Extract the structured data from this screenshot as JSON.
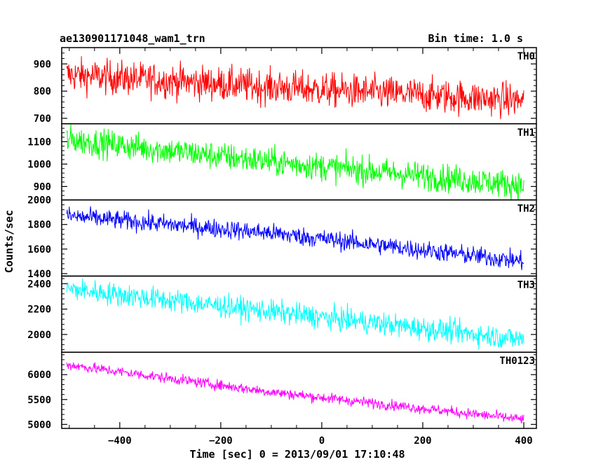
{
  "chart_data": {
    "type": "line",
    "title": "ae130901171048_wam1_trn",
    "bin_time_label": "Bin time: 1.0 s",
    "xlabel": "Time [sec] 0 = 2013/09/01 17:10:48",
    "ylabel": "Counts/sec",
    "xlim": [
      -515,
      425
    ],
    "x_ticks": [
      -400,
      -200,
      0,
      200,
      400
    ],
    "x_tick_labels": [
      "−400",
      "−200",
      "0",
      "200",
      "400"
    ],
    "x_range_data": [
      -505,
      400
    ],
    "grid": false,
    "panels": [
      {
        "name": "TH0",
        "color": "#ff0000",
        "ylim": [
          680,
          960
        ],
        "y_ticks": [
          700,
          800,
          900
        ],
        "y_tick_labels": [
          "700",
          "800",
          "900"
        ],
        "trend": [
          [
            -505,
            860
          ],
          [
            -100,
            815
          ],
          [
            400,
            765
          ]
        ],
        "noise": 45
      },
      {
        "name": "TH1",
        "color": "#00ff00",
        "ylim": [
          840,
          1180
        ],
        "y_ticks": [
          900,
          1000,
          1100
        ],
        "y_tick_labels": [
          "900",
          "1000",
          "1100"
        ],
        "trend": [
          [
            -505,
            1110
          ],
          [
            -100,
            1010
          ],
          [
            400,
            905
          ]
        ],
        "noise": 45
      },
      {
        "name": "TH2",
        "color": "#0000ff",
        "ylim": [
          1380,
          2000
        ],
        "y_ticks": [
          1400,
          1600,
          1800,
          2000
        ],
        "y_tick_labels": [
          "1400",
          "1600",
          "1800",
          "2000"
        ],
        "trend": [
          [
            -505,
            1870
          ],
          [
            -100,
            1730
          ],
          [
            400,
            1500
          ]
        ],
        "noise": 55
      },
      {
        "name": "TH3",
        "color": "#00ffff",
        "ylim": [
          1860,
          2460
        ],
        "y_ticks": [
          2000,
          2200,
          2400
        ],
        "y_tick_labels": [
          "2000",
          "2200",
          "2400"
        ],
        "trend": [
          [
            -505,
            2360
          ],
          [
            -100,
            2180
          ],
          [
            400,
            1960
          ]
        ],
        "noise": 65
      },
      {
        "name": "TH0123",
        "color": "#ff00ff",
        "ylim": [
          4920,
          6450
        ],
        "y_ticks": [
          5000,
          5500,
          6000
        ],
        "y_tick_labels": [
          "5000",
          "5500",
          "6000"
        ],
        "trend": [
          [
            -505,
            6200
          ],
          [
            -100,
            5650
          ],
          [
            400,
            5100
          ]
        ],
        "noise": 75
      }
    ]
  }
}
